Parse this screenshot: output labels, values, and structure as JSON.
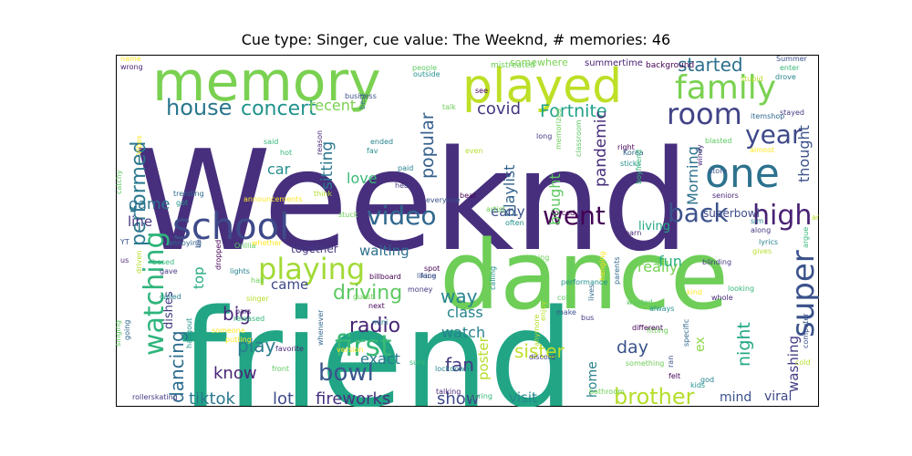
{
  "chart_data": {
    "type": "wordcloud",
    "title": "Cue type: Singer, cue value: The Weeknd, # memories: 46",
    "words": [
      {
        "text": "Weeknd",
        "weight": 100,
        "color": "#472f7d"
      },
      {
        "text": "friend",
        "weight": 97,
        "color": "#21a585"
      },
      {
        "text": "dance",
        "weight": 68,
        "color": "#6ece58"
      },
      {
        "text": "memory",
        "weight": 55,
        "color": "#7ad151"
      },
      {
        "text": "played",
        "weight": 48,
        "color": "#bddf26"
      },
      {
        "text": "school",
        "weight": 40,
        "color": "#3e4a89"
      },
      {
        "text": "one",
        "weight": 38,
        "color": "#2c728e"
      },
      {
        "text": "family",
        "weight": 30,
        "color": "#7ad151"
      },
      {
        "text": "playing",
        "weight": 30,
        "color": "#a2da37"
      },
      {
        "text": "room",
        "weight": 27,
        "color": "#414487"
      },
      {
        "text": "first",
        "weight": 27,
        "color": "#38b977"
      },
      {
        "text": "super",
        "weight": 27,
        "color": "#3b528b"
      },
      {
        "text": "video",
        "weight": 26,
        "color": "#31688e"
      },
      {
        "text": "watching",
        "weight": 26,
        "color": "#2fb47c"
      },
      {
        "text": "high",
        "weight": 26,
        "color": "#482173"
      },
      {
        "text": "went",
        "weight": 24,
        "color": "#440154"
      },
      {
        "text": "back",
        "weight": 24,
        "color": "#3b528b"
      },
      {
        "text": "year",
        "weight": 22,
        "color": "#3e4989"
      },
      {
        "text": "bowl",
        "weight": 22,
        "color": "#39558c"
      },
      {
        "text": "house",
        "weight": 20,
        "color": "#2a768e"
      },
      {
        "text": "concert",
        "weight": 20,
        "color": "#20938c"
      },
      {
        "text": "brother",
        "weight": 20,
        "color": "#b5de2b"
      },
      {
        "text": "performed",
        "weight": 18,
        "color": "#2a788e"
      },
      {
        "text": "started",
        "weight": 18,
        "color": "#2d708e"
      },
      {
        "text": "driving",
        "weight": 18,
        "color": "#5ec962"
      },
      {
        "text": "radio",
        "weight": 18,
        "color": "#482576"
      },
      {
        "text": "dancing",
        "weight": 17,
        "color": "#2e6d8e"
      },
      {
        "text": "play",
        "weight": 17,
        "color": "#297b8e"
      },
      {
        "text": "big",
        "weight": 17,
        "color": "#482878"
      },
      {
        "text": "sister",
        "weight": 17,
        "color": "#bddf26"
      },
      {
        "text": "way",
        "weight": 17,
        "color": "#25848e"
      },
      {
        "text": "fan",
        "weight": 17,
        "color": "#443a83"
      },
      {
        "text": "Fortnite",
        "weight": 16,
        "color": "#1fa187"
      },
      {
        "text": "popular",
        "weight": 16,
        "color": "#355f8d"
      },
      {
        "text": "day",
        "weight": 16,
        "color": "#3a538b"
      },
      {
        "text": "night",
        "weight": 16,
        "color": "#22a884"
      },
      {
        "text": "tiktok",
        "weight": 16,
        "color": "#2a788e"
      },
      {
        "text": "lot",
        "weight": 16,
        "color": "#3e4c8a"
      },
      {
        "text": "fireworks",
        "weight": 16,
        "color": "#46327e"
      },
      {
        "text": "show",
        "weight": 16,
        "color": "#3e4989"
      },
      {
        "text": "know",
        "weight": 16,
        "color": "#482475"
      },
      {
        "text": "covid",
        "weight": 15,
        "color": "#453882"
      },
      {
        "text": "sitting",
        "weight": 15,
        "color": "#2a778e"
      },
      {
        "text": "pandemic",
        "weight": 15,
        "color": "#472d7b"
      },
      {
        "text": "thought",
        "weight": 14,
        "color": "#3b518b"
      },
      {
        "text": "game",
        "weight": 14,
        "color": "#2b748e"
      },
      {
        "text": "car",
        "weight": 14,
        "color": "#228c8d"
      },
      {
        "text": "recent",
        "weight": 14,
        "color": "#7ad151"
      },
      {
        "text": "love",
        "weight": 14,
        "color": "#3aba76"
      },
      {
        "text": "Morning",
        "weight": 14,
        "color": "#2d718e"
      },
      {
        "text": "bought",
        "weight": 14,
        "color": "#5ec962"
      },
      {
        "text": "playlist",
        "weight": 14,
        "color": "#33638d"
      },
      {
        "text": "really",
        "weight": 14,
        "color": "#75d054"
      },
      {
        "text": "fun",
        "weight": 14,
        "color": "#2ab07f"
      },
      {
        "text": "class",
        "weight": 14,
        "color": "#25848e"
      },
      {
        "text": "watch",
        "weight": 14,
        "color": "#26828e"
      },
      {
        "text": "exact",
        "weight": 14,
        "color": "#2a788e"
      },
      {
        "text": "came",
        "weight": 13,
        "color": "#3f4889"
      },
      {
        "text": "top",
        "weight": 13,
        "color": "#25ab82"
      },
      {
        "text": "waiting",
        "weight": 13,
        "color": "#2d708e"
      },
      {
        "text": "poster",
        "weight": 13,
        "color": "#b5de2b"
      },
      {
        "text": "line",
        "weight": 13,
        "color": "#463480"
      },
      {
        "text": "washing",
        "weight": 13,
        "color": "#433e85"
      },
      {
        "text": "early",
        "weight": 13,
        "color": "#3b528b"
      },
      {
        "text": "visit",
        "weight": 13,
        "color": "#24868e"
      },
      {
        "text": "mind",
        "weight": 12,
        "color": "#3b528b"
      },
      {
        "text": "viral",
        "weight": 12,
        "color": "#3e4a89"
      },
      {
        "text": "home",
        "weight": 12,
        "color": "#27808e"
      },
      {
        "text": "ex",
        "weight": 12,
        "color": "#8bd646"
      },
      {
        "text": "dishes",
        "weight": 12,
        "color": "#433e85"
      },
      {
        "text": "living",
        "weight": 12,
        "color": "#22a884"
      },
      {
        "text": "superbowl",
        "weight": 11,
        "color": "#3e4a89"
      },
      {
        "text": "together",
        "weight": 11,
        "color": "#453781"
      },
      {
        "text": "somewhere",
        "weight": 10,
        "color": "#7ad151"
      },
      {
        "text": "summertime",
        "weight": 9,
        "color": "#482475"
      }
    ],
    "small_words": [
      "mistreated",
      "background",
      "Summer",
      "outside",
      "people",
      "best",
      "name",
      "wrong",
      "enter",
      "drove",
      "stupid",
      "stayed",
      "talk",
      "see",
      "business",
      "fav",
      "blasted",
      "itemshop",
      "almost",
      "windy",
      "said",
      "ended",
      "even",
      "long",
      "memorized",
      "right",
      "store",
      "sticks",
      "classroom",
      "Korea",
      "Vibes",
      "reason",
      "hot",
      "paid",
      "think",
      "hear",
      "artist",
      "beat",
      "everyone",
      "got",
      "catchy",
      "trending",
      "announcements",
      "seniors",
      "boyfriend",
      "sim",
      "another",
      "along",
      "stuck",
      "forced",
      "YT",
      "often",
      "Orillia",
      "annoying",
      "whether",
      "learn",
      "argue",
      "lyrics",
      "gives",
      "blinding",
      "anything",
      "spot",
      "face",
      "calling",
      "official",
      "parents",
      "hanging",
      "us",
      "based",
      "lights",
      "driven",
      "gave",
      "hair",
      "billboard",
      "liking",
      "performance",
      "coll",
      "lives",
      "kind",
      "whole",
      "looking",
      "called",
      "singer",
      "money",
      "guest",
      "next",
      "make",
      "always",
      "wasted",
      "specific",
      "someone",
      "bars",
      "released",
      "mini",
      "enjoy",
      "bus",
      "fitting",
      "different",
      "computer",
      "hangout",
      "singing",
      "going",
      "putting",
      "favorite",
      "sure",
      "lockdown",
      "anymore",
      "discord",
      "something",
      "felt",
      "ran",
      "kids",
      "front",
      "whenever",
      "version",
      "talking",
      "spring",
      "god",
      "cold",
      "rollerskating",
      "bathroom",
      "dropped",
      "bad"
    ]
  }
}
